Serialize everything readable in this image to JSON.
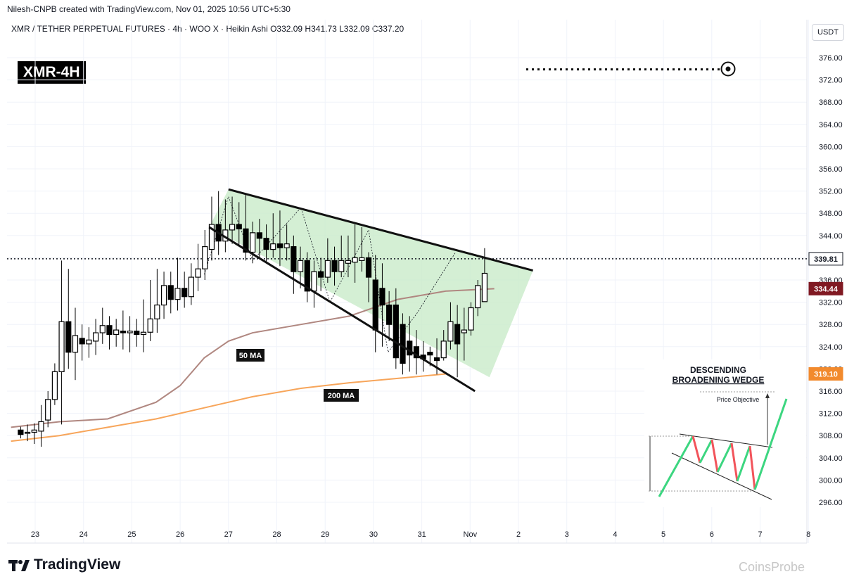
{
  "header": {
    "attribution": "Nilesh-CNPB created with TradingView.com, Nov 01, 2025 10:56 UTC+5:30",
    "legend": "XMR / TETHER PERPETUAL FUTURES · 4h · WOO X · Heikin Ashi  O332.09  H341.73  L332.09  C337.20",
    "currency": "USDT"
  },
  "badge": "XMR-4H",
  "brand": "TradingView",
  "watermark": "CoinsProbe",
  "annotations": {
    "ma50_label": "50 MA",
    "ma200_label": "200 MA",
    "inset_title_1": "DESCENDING",
    "inset_title_2": "BROADENING WEDGE",
    "inset_price_objective": "Price Objective"
  },
  "colors": {
    "up": "#000000",
    "down": "#000000",
    "wedge_fill": "#c9ebc9",
    "ma50": "#b08780",
    "ma200": "#f7a55a",
    "last_price_tag": "#131722",
    "ma50_tag": "#801922",
    "ma200_tag": "#f28a2d",
    "inset_green": "#3cd680",
    "inset_red": "#f2545b"
  },
  "chart_data": {
    "type": "candlestick",
    "style": "Heikin Ashi",
    "timeframe": "4h",
    "ylim": [
      294,
      378
    ],
    "y_ticks": [
      "376.00",
      "372.00",
      "368.00",
      "364.00",
      "360.00",
      "356.00",
      "352.00",
      "348.00",
      "344.00",
      "340.00",
      "336.00",
      "332.00",
      "328.00",
      "324.00",
      "320.00",
      "316.00",
      "312.00",
      "308.00",
      "304.00",
      "300.00",
      "296.00"
    ],
    "x_ticks": [
      "23",
      "24",
      "25",
      "26",
      "27",
      "28",
      "29",
      "30",
      "31",
      "Nov",
      "2",
      "3",
      "4",
      "5",
      "6",
      "7",
      "8"
    ],
    "price_tags": [
      {
        "label": "339.81",
        "value": 339.81,
        "kind": "last"
      },
      {
        "label": "334.44",
        "value": 334.44,
        "kind": "ma50"
      },
      {
        "label": "319.10",
        "value": 319.1,
        "kind": "ma200"
      }
    ],
    "candles": [
      [
        309.0,
        308.2,
        309.6,
        307.5
      ],
      [
        308.4,
        308.6,
        310.0,
        307.0
      ],
      [
        308.6,
        309.0,
        310.2,
        306.5
      ],
      [
        308.8,
        310.5,
        313.5,
        306.0
      ],
      [
        310.8,
        314.5,
        316.0,
        309.5
      ],
      [
        314.5,
        319.5,
        321.0,
        313.5
      ],
      [
        319.5,
        328.5,
        339.5,
        310.0
      ],
      [
        328.5,
        323.0,
        338.0,
        320.0
      ],
      [
        323.0,
        326.0,
        331.0,
        318.0
      ],
      [
        325.5,
        324.5,
        328.0,
        321.5
      ],
      [
        324.5,
        325.2,
        327.5,
        322.0
      ],
      [
        325.0,
        326.5,
        329.0,
        322.5
      ],
      [
        326.5,
        327.8,
        331.0,
        324.5
      ],
      [
        327.8,
        326.2,
        329.5,
        323.5
      ],
      [
        326.2,
        327.0,
        329.0,
        324.0
      ],
      [
        326.8,
        326.5,
        330.5,
        323.5
      ],
      [
        326.5,
        326.8,
        329.5,
        323.0
      ],
      [
        326.8,
        326.2,
        329.0,
        324.0
      ],
      [
        326.2,
        326.6,
        332.5,
        323.0
      ],
      [
        326.6,
        329.0,
        336.0,
        325.0
      ],
      [
        329.0,
        331.5,
        338.0,
        326.5
      ],
      [
        331.5,
        335.0,
        337.5,
        329.0
      ],
      [
        335.0,
        332.5,
        337.5,
        330.0
      ],
      [
        332.5,
        334.5,
        340.0,
        330.5
      ],
      [
        334.5,
        333.0,
        337.5,
        331.0
      ],
      [
        333.0,
        336.5,
        339.0,
        331.5
      ],
      [
        336.5,
        338.0,
        342.5,
        334.0
      ],
      [
        338.0,
        342.0,
        345.0,
        336.0
      ],
      [
        341.5,
        346.0,
        351.0,
        339.5
      ],
      [
        346.0,
        343.0,
        352.0,
        340.5
      ],
      [
        343.0,
        345.0,
        350.5,
        341.0
      ],
      [
        345.0,
        346.0,
        351.0,
        342.5
      ],
      [
        346.0,
        345.2,
        350.0,
        342.0
      ],
      [
        345.2,
        341.0,
        351.5,
        339.5
      ],
      [
        341.0,
        344.5,
        346.5,
        339.0
      ],
      [
        344.5,
        343.5,
        347.0,
        340.0
      ],
      [
        343.5,
        341.5,
        346.0,
        339.0
      ],
      [
        341.5,
        342.5,
        348.0,
        340.0
      ],
      [
        342.5,
        341.8,
        348.5,
        338.5
      ],
      [
        341.8,
        342.5,
        346.0,
        339.5
      ],
      [
        342.0,
        337.5,
        344.0,
        333.5
      ],
      [
        337.5,
        339.5,
        342.0,
        334.5
      ],
      [
        339.5,
        334.0,
        341.0,
        332.0
      ],
      [
        334.0,
        337.5,
        339.5,
        331.0
      ],
      [
        337.5,
        336.5,
        340.0,
        334.0
      ],
      [
        336.5,
        339.5,
        343.5,
        335.5
      ],
      [
        339.5,
        337.5,
        342.0,
        335.0
      ],
      [
        337.5,
        339.5,
        344.0,
        336.5
      ],
      [
        339.0,
        339.5,
        344.0,
        336.5
      ],
      [
        339.2,
        340.0,
        346.0,
        335.5
      ],
      [
        339.5,
        340.0,
        345.5,
        337.5
      ],
      [
        340.0,
        336.5,
        341.0,
        332.0
      ],
      [
        336.0,
        327.0,
        340.5,
        323.0
      ],
      [
        334.5,
        331.5,
        339.0,
        324.0
      ],
      [
        331.5,
        328.0,
        334.0,
        325.0
      ],
      [
        331.5,
        322.0,
        334.5,
        320.0
      ],
      [
        328.0,
        321.0,
        330.0,
        319.0
      ],
      [
        325.0,
        322.5,
        329.5,
        319.5
      ],
      [
        324.0,
        322.0,
        327.0,
        319.0
      ],
      [
        322.5,
        321.8,
        325.0,
        319.5
      ],
      [
        323.0,
        322.5,
        324.0,
        320.5
      ],
      [
        322.0,
        321.5,
        325.5,
        319.0
      ],
      [
        322.0,
        325.0,
        327.0,
        321.5
      ],
      [
        325.0,
        328.5,
        332.0,
        323.5
      ],
      [
        328.0,
        324.5,
        331.5,
        318.5
      ],
      [
        326.5,
        327.0,
        331.0,
        321.5
      ],
      [
        327.0,
        331.0,
        332.0,
        326.0
      ],
      [
        331.0,
        335.0,
        336.0,
        329.5
      ],
      [
        332.1,
        337.2,
        341.73,
        332.09
      ]
    ],
    "ma50": [
      [
        22.5,
        309.5
      ],
      [
        23.5,
        310.5
      ],
      [
        24.5,
        311.0
      ],
      [
        25.5,
        314.0
      ],
      [
        26.0,
        317.0
      ],
      [
        26.5,
        322.0
      ],
      [
        27.0,
        325.0
      ],
      [
        27.5,
        326.5
      ],
      [
        28.5,
        328.0
      ],
      [
        29.5,
        329.5
      ],
      [
        30.5,
        332.5
      ],
      [
        31.5,
        334.0
      ],
      [
        32.5,
        334.44
      ]
    ],
    "ma200": [
      [
        22.5,
        307.0
      ],
      [
        23.5,
        308.0
      ],
      [
        24.5,
        309.5
      ],
      [
        25.5,
        311.0
      ],
      [
        26.5,
        313.0
      ],
      [
        27.5,
        315.0
      ],
      [
        28.5,
        316.5
      ],
      [
        29.5,
        317.5
      ],
      [
        30.5,
        318.3
      ],
      [
        31.5,
        319.1
      ]
    ],
    "wedge_upper": [
      [
        27.0,
        352.3
      ],
      [
        33.3,
        337.7
      ]
    ],
    "wedge_lower": [
      [
        26.6,
        345.5
      ],
      [
        32.1,
        316.0
      ]
    ],
    "target_level": 373.9
  }
}
